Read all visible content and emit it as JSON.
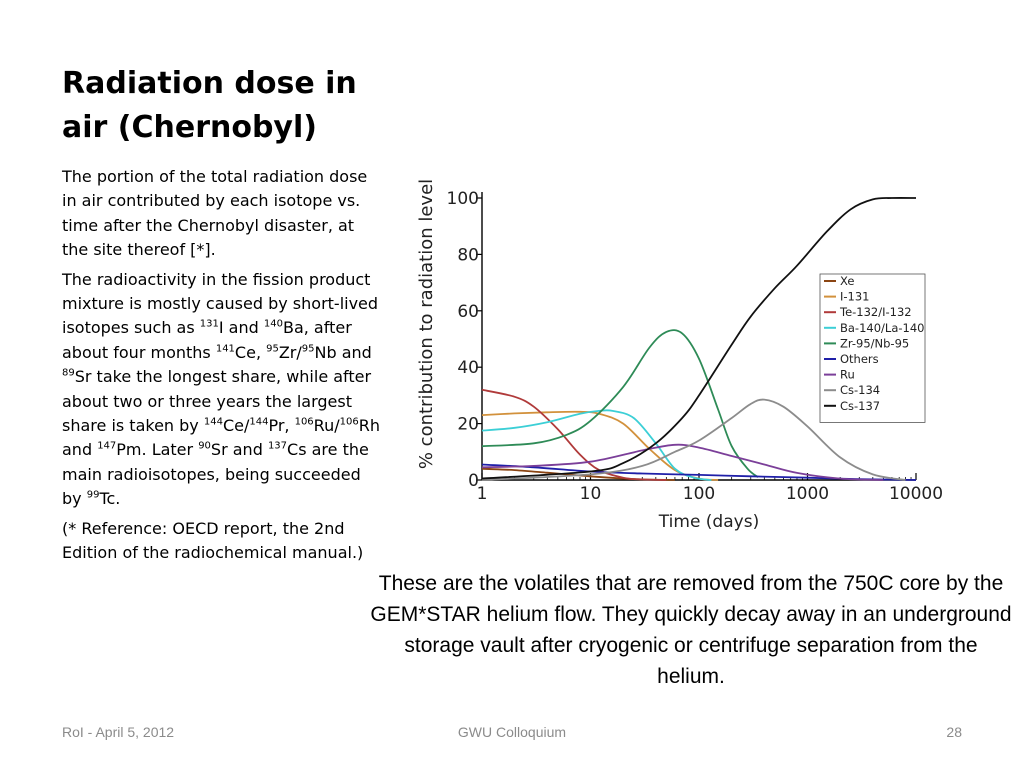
{
  "slide": {
    "title": "Radiation dose in air (Chernobyl)",
    "paragraph1": "The portion of the total radiation dose in air contributed by each isotope vs. time after the Chernobyl disaster, at the site thereof [*].",
    "paragraph2": {
      "t1": "The radioactivity in the fission product mixture is mostly caused by short-lived isotopes such as ",
      "s1": "131",
      "t2": "I and ",
      "s2": "140",
      "t3": "Ba, after about four months ",
      "s3": "141",
      "t4": "Ce, ",
      "s4": "95",
      "t5": "Zr/",
      "s5": "95",
      "t6": "Nb and ",
      "s6": "89",
      "t7": "Sr take the longest share, while after about two or three years the largest share is taken by ",
      "s7": "144",
      "t8": "Ce/",
      "s8": "144",
      "t9": "Pr, ",
      "s9": "106",
      "t10": "Ru/",
      "s10": "106",
      "t11": "Rh and ",
      "s11": "147",
      "t12": "Pm. Later ",
      "s12": "90",
      "t13": "Sr and ",
      "s13": "137",
      "t14": "Cs are the main radioisotopes, being succeeded by ",
      "s14": "99",
      "t15": "Tc."
    },
    "paragraph3": "(* Reference: OECD report, the 2nd Edition of the radiochemical manual.)",
    "caption": "These are the volatiles that are removed from the  750C core by the GEM*STAR helium flow. They quickly decay away in an underground storage vault after cryogenic or centrifuge separation from the helium.",
    "footer_left": "RoI - April 5, 2012",
    "footer_center": "GWU Colloquium",
    "footer_right": "28"
  },
  "chart_data": {
    "type": "line",
    "title": "",
    "xlabel": "Time (days)",
    "ylabel": "% contribution to radiation level",
    "x_scale": "log",
    "xlim": [
      1,
      10000
    ],
    "ylim": [
      0,
      100
    ],
    "x_ticks": [
      1,
      10,
      100,
      1000,
      10000
    ],
    "y_ticks": [
      0,
      20,
      40,
      60,
      80,
      100
    ],
    "grid": false,
    "legend_position": "right",
    "series": [
      {
        "name": "Xe",
        "color": "#8b4513",
        "x": [
          1,
          2,
          4,
          8,
          15,
          30,
          60
        ],
        "y": [
          4,
          3.5,
          2.6,
          1.6,
          0.8,
          0.2,
          0
        ]
      },
      {
        "name": "I-131",
        "color": "#d2913c",
        "x": [
          1,
          2,
          4,
          8,
          12,
          20,
          35,
          60,
          100,
          150
        ],
        "y": [
          23,
          23.6,
          24,
          24.2,
          23.5,
          20,
          11,
          3.5,
          0.5,
          0
        ]
      },
      {
        "name": "Te-132/I-132",
        "color": "#b03a3a",
        "x": [
          1,
          2,
          3,
          5,
          8,
          12,
          20,
          30,
          50
        ],
        "y": [
          32,
          29.5,
          26,
          18,
          9,
          3.5,
          0.8,
          0.2,
          0
        ]
      },
      {
        "name": "Ba-140/La-140",
        "color": "#3ccfd6",
        "x": [
          1,
          2,
          4,
          8,
          12,
          16,
          25,
          40,
          60,
          90,
          130
        ],
        "y": [
          17.5,
          18.5,
          20.5,
          23.5,
          24.5,
          24.5,
          22,
          13,
          4,
          0.8,
          0
        ]
      },
      {
        "name": "Zr-95/Nb-95",
        "color": "#2e8b57",
        "x": [
          1,
          3,
          6,
          10,
          20,
          35,
          50,
          70,
          100,
          150,
          200,
          280,
          350
        ],
        "y": [
          12,
          13,
          16,
          21,
          33,
          47,
          52.5,
          52,
          43,
          25,
          12,
          4,
          1
        ]
      },
      {
        "name": "Others",
        "color": "#1f1fa8",
        "x": [
          1,
          3,
          10,
          30,
          100,
          300,
          1000,
          3000,
          10000
        ],
        "y": [
          5.5,
          4.5,
          3,
          2.3,
          1.8,
          1.3,
          0.8,
          0.3,
          0
        ]
      },
      {
        "name": "Ru",
        "color": "#7b3f99",
        "x": [
          1,
          3,
          10,
          30,
          60,
          100,
          200,
          400,
          800,
          2000,
          5000
        ],
        "y": [
          4.5,
          5,
          6.5,
          10.5,
          12.5,
          11.5,
          8.5,
          5.5,
          2.5,
          0.5,
          0
        ]
      },
      {
        "name": "Cs-134",
        "color": "#8c8c8c",
        "x": [
          1,
          10,
          30,
          60,
          100,
          200,
          300,
          400,
          600,
          1000,
          2000,
          4000,
          8000
        ],
        "y": [
          0,
          2,
          5,
          10,
          14,
          22,
          27,
          28.5,
          26,
          19,
          8,
          2,
          0
        ]
      },
      {
        "name": "Cs-137",
        "color": "#111111",
        "x": [
          1,
          10,
          20,
          40,
          70,
          100,
          200,
          300,
          500,
          800,
          1500,
          2500,
          4000,
          6000,
          10000
        ],
        "y": [
          0.5,
          3,
          6,
          13,
          22,
          30,
          48,
          58,
          68,
          76,
          88,
          96,
          99.5,
          100,
          100
        ]
      }
    ]
  }
}
